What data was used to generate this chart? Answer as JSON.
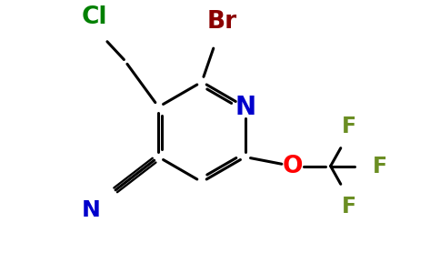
{
  "background_color": "#ffffff",
  "ring_color": "#000000",
  "atom_colors": {
    "N": "#0000cc",
    "Br": "#8b0000",
    "Cl": "#008000",
    "O": "#ff0000",
    "F": "#6b8e23",
    "CN_N": "#0000cc"
  },
  "lw": 2.2
}
